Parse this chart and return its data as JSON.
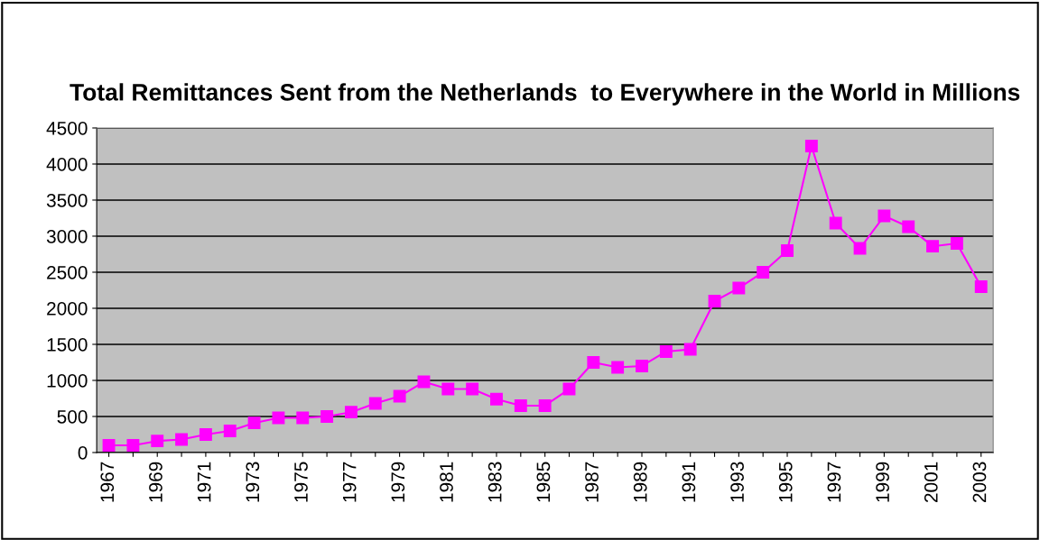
{
  "chart_data": {
    "type": "line",
    "title": "Total Remittances Sent from the Netherlands  to Everywhere in the World in Millions",
    "categories": [
      "1967",
      null,
      "1969",
      null,
      "1971",
      null,
      "1973",
      null,
      "1975",
      null,
      "1977",
      null,
      "1979",
      null,
      "1981",
      null,
      "1983",
      null,
      "1985",
      null,
      "1987",
      null,
      "1989",
      null,
      "1991",
      null,
      "1993",
      null,
      "1995",
      null,
      "1997",
      null,
      "1999",
      null,
      "2001",
      null,
      "2003"
    ],
    "series": [
      {
        "color": "#ff00ff",
        "values": [
          100,
          100,
          160,
          180,
          250,
          300,
          410,
          480,
          480,
          500,
          560,
          680,
          780,
          980,
          880,
          880,
          740,
          650,
          650,
          880,
          1250,
          1180,
          1200,
          1400,
          1430,
          2100,
          2280,
          2500,
          2800,
          4250,
          3180,
          2830,
          3280,
          3130,
          2860,
          2900,
          2300
        ]
      }
    ],
    "ylim": [
      0,
      4500
    ],
    "yticks": [
      0,
      500,
      1000,
      1500,
      2000,
      2500,
      3000,
      3500,
      4000,
      4500
    ],
    "grid": "y",
    "marker": "square",
    "line_style": "solid",
    "legend": false
  }
}
